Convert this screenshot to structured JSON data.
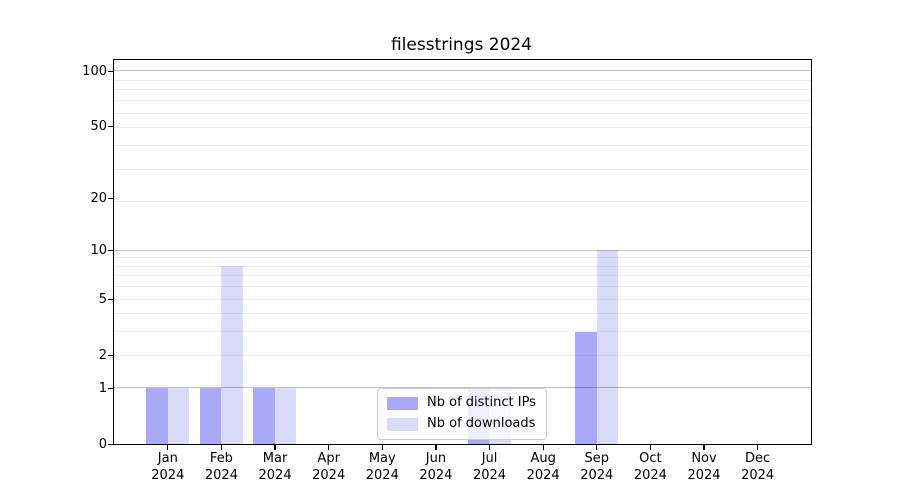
{
  "title": "filesstrings 2024",
  "colors": {
    "bar_distinct_ips": "#a9a9f8",
    "bar_downloads": "#dadaf9",
    "grid_minor": "rgba(0,0,0,0.07)",
    "grid_major": "rgba(0,0,0,0.24)",
    "axis": "#000000",
    "legend_border": "#cccccc",
    "background": "#ffffff"
  },
  "chart_data": {
    "type": "bar",
    "title": "filesstrings 2024",
    "categories": [
      "Jan 2024",
      "Feb 2024",
      "Mar 2024",
      "Apr 2024",
      "May 2024",
      "Jun 2024",
      "Jul 2024",
      "Aug 2024",
      "Sep 2024",
      "Oct 2024",
      "Nov 2024",
      "Dec 2024"
    ],
    "x_months": [
      "Jan",
      "Feb",
      "Mar",
      "Apr",
      "May",
      "Jun",
      "Jul",
      "Aug",
      "Sep",
      "Oct",
      "Nov",
      "Dec"
    ],
    "x_year": "2024",
    "series": [
      {
        "name": "Nb of distinct IPs",
        "color": "#a9a9f8",
        "values": [
          1,
          1,
          1,
          0,
          0,
          0,
          1,
          0,
          3,
          0,
          0,
          0
        ]
      },
      {
        "name": "Nb of downloads",
        "color": "#dadaf9",
        "values": [
          1,
          8,
          1,
          0,
          0,
          0,
          1,
          0,
          10,
          0,
          0,
          0
        ]
      }
    ],
    "y_axis": {
      "scale": "log10(1+y)",
      "tick_values": [
        0,
        1,
        2,
        5,
        10,
        20,
        50,
        100
      ],
      "tick_labels": [
        "0",
        "1",
        "2",
        "5",
        "10",
        "20",
        "50",
        "100"
      ],
      "grid_minor_at": [
        2,
        3,
        4,
        5,
        6,
        7,
        8,
        9,
        19,
        29,
        39,
        49,
        59,
        69,
        79,
        89
      ],
      "grid_major_at": [
        1,
        10,
        100
      ],
      "ylim": [
        0,
        115
      ]
    },
    "grid": "on",
    "legend_position": "inside-bottom-center"
  }
}
